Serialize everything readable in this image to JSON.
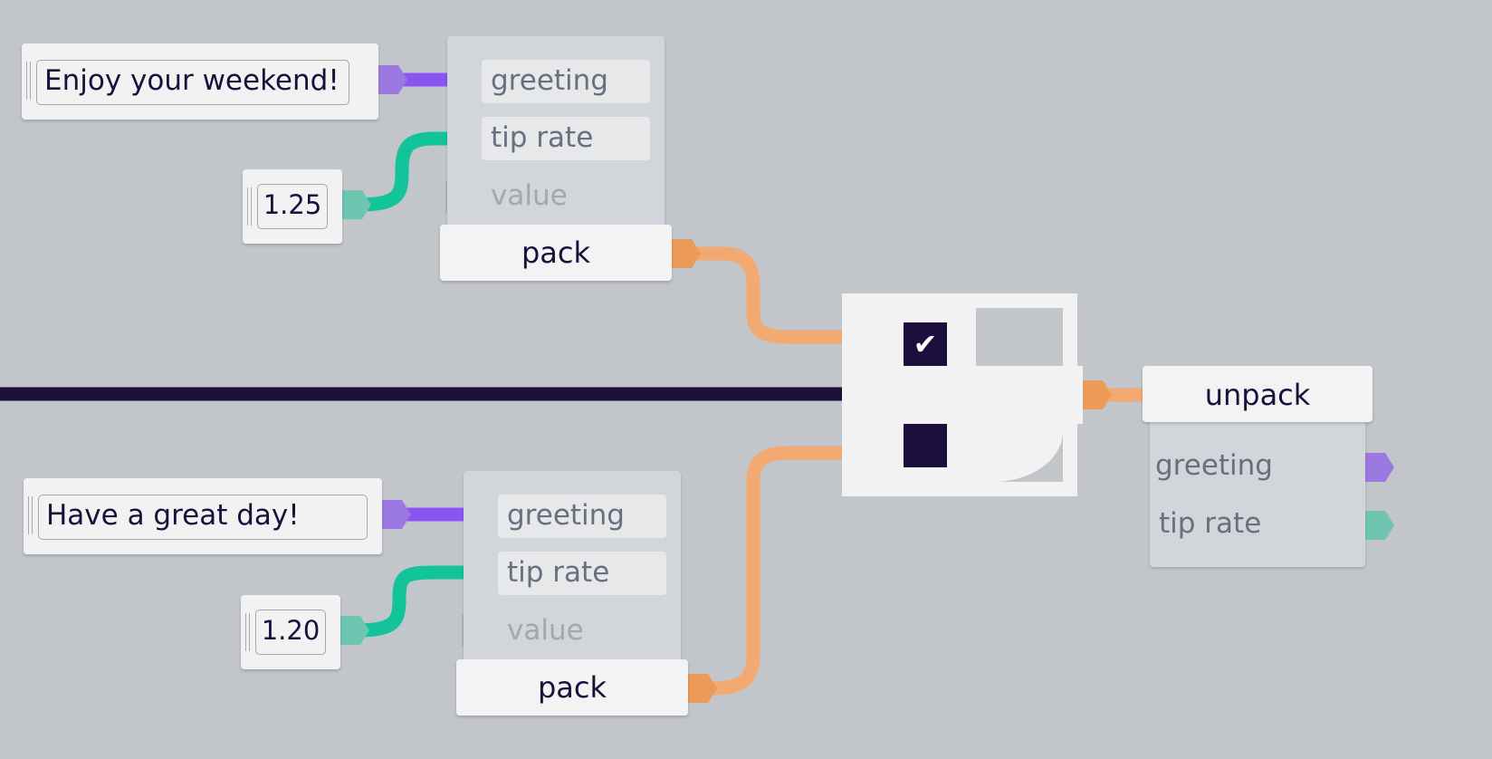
{
  "colors": {
    "background": "#c2c6cb",
    "string_port": "#9b79e0",
    "string_wire": "#8a55f0",
    "number_port": "#6ec5b0",
    "number_wire": "#13c49a",
    "struct_port": "#ec9a58",
    "struct_wire": "#f2aa72",
    "bool_port": "#555555",
    "bool_wire": "#1c0f3c"
  },
  "top": {
    "greeting_value": "Enjoy your weekend!",
    "tip_value": "1.25",
    "pack": {
      "slots": [
        "greeting",
        "tip rate",
        "value"
      ],
      "label": "pack"
    }
  },
  "bottom": {
    "greeting_value": "Have a great day!",
    "tip_value": "1.20",
    "pack": {
      "slots": [
        "greeting",
        "tip rate",
        "value"
      ],
      "label": "pack"
    }
  },
  "switch": {
    "top_checked": true,
    "check_glyph": "✔"
  },
  "unpack": {
    "label": "unpack",
    "outputs": [
      "greeting",
      "tip rate"
    ]
  }
}
